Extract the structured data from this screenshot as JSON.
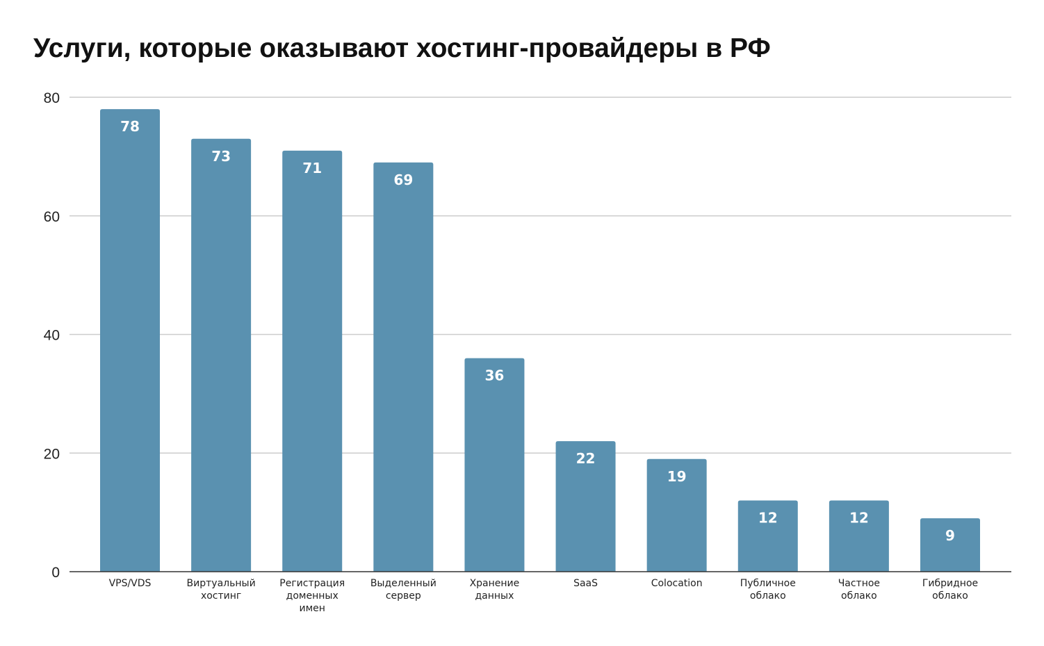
{
  "chart_data": {
    "type": "bar",
    "title": "Услуги, которые оказывают хостинг-провайдеры в РФ",
    "categories": [
      [
        "VPS/VDS"
      ],
      [
        "Виртуальный",
        "хостинг"
      ],
      [
        "Регистрация",
        "доменных",
        "имен"
      ],
      [
        "Выделенный",
        "сервер"
      ],
      [
        "Хранение",
        "данных"
      ],
      [
        "SaaS"
      ],
      [
        "Colocation"
      ],
      [
        "Публичное",
        "облако"
      ],
      [
        "Частное",
        "облако"
      ],
      [
        "Гибридное",
        "облако"
      ]
    ],
    "values": [
      78,
      73,
      71,
      69,
      36,
      22,
      19,
      12,
      12,
      9
    ],
    "ylim": [
      0,
      80
    ],
    "yticks": [
      "0",
      "20",
      "40",
      "60",
      "80"
    ],
    "grid": true,
    "bar_color": "#5a91b0",
    "grid_color": "#cccccc"
  }
}
